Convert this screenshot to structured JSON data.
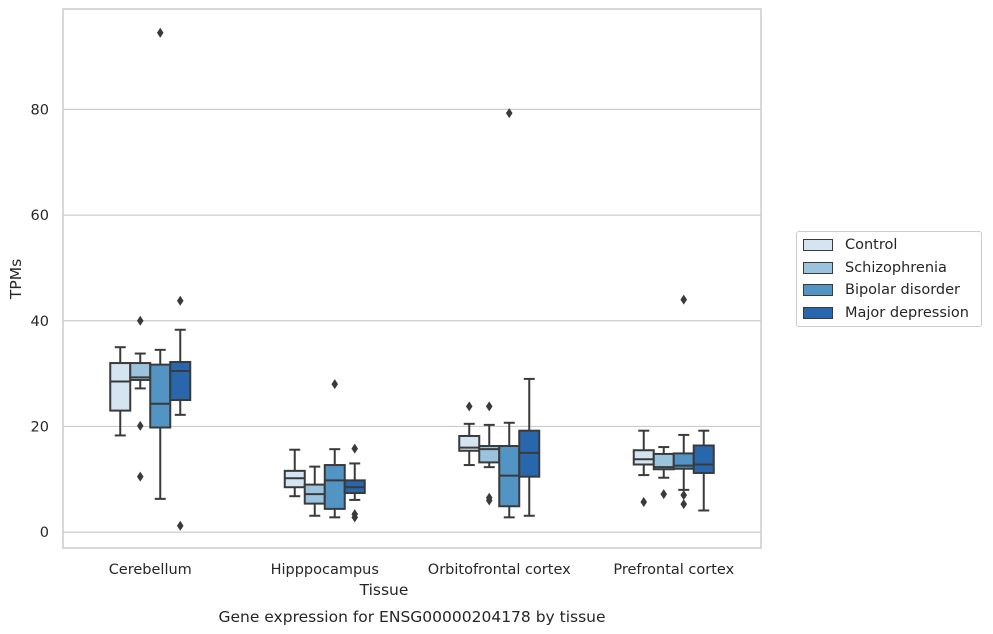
{
  "chart_data": {
    "type": "box",
    "title": "Gene expression for ENSG00000204178 by tissue",
    "xlabel": "Tissue",
    "ylabel": "TPMs",
    "ylim": [
      -3,
      99
    ],
    "yticks": [
      0,
      20,
      40,
      60,
      80
    ],
    "grid": "horizontal",
    "legend_position": "right",
    "categories": [
      "Cerebellum",
      "Hipppocampus",
      "Orbitofrontal cortex",
      "Prefrontal cortex"
    ],
    "series": [
      {
        "name": "Control",
        "color": "#d4e4f1",
        "boxes": [
          {
            "whislo": 18.3,
            "q1": 23,
            "med": 28.5,
            "q3": 32,
            "whishi": 35,
            "fliers": []
          },
          {
            "whislo": 6.8,
            "q1": 8.5,
            "med": 10.2,
            "q3": 11.6,
            "whishi": 15.6,
            "fliers": []
          },
          {
            "whislo": 12.7,
            "q1": 15.4,
            "med": 16,
            "q3": 18.2,
            "whishi": 20.5,
            "fliers": [
              23.8
            ]
          },
          {
            "whislo": 10.8,
            "q1": 12.8,
            "med": 13.8,
            "q3": 15.5,
            "whishi": 19.2,
            "fliers": [
              5.7
            ]
          }
        ]
      },
      {
        "name": "Schizophrenia",
        "color": "#9cc3dd",
        "boxes": [
          {
            "whislo": 27.2,
            "q1": 28.8,
            "med": 29.3,
            "q3": 32,
            "whishi": 33.8,
            "fliers": [
              40,
              20.1,
              10.5
            ]
          },
          {
            "whislo": 3.1,
            "q1": 5.4,
            "med": 7.2,
            "q3": 9,
            "whishi": 12.4,
            "fliers": []
          },
          {
            "whislo": 12.3,
            "q1": 13.2,
            "med": 15.7,
            "q3": 16.3,
            "whishi": 20.3,
            "fliers": [
              23.8,
              6.5,
              6
            ]
          },
          {
            "whislo": 10.3,
            "q1": 11.9,
            "med": 12.3,
            "q3": 14.8,
            "whishi": 16.1,
            "fliers": [
              7.2
            ]
          }
        ]
      },
      {
        "name": "Bipolar disorder",
        "color": "#5294c3",
        "boxes": [
          {
            "whislo": 6.3,
            "q1": 19.8,
            "med": 24.3,
            "q3": 31.7,
            "whishi": 34.5,
            "fliers": [
              94.5
            ]
          },
          {
            "whislo": 2.8,
            "q1": 4.4,
            "med": 9.8,
            "q3": 12.7,
            "whishi": 15.7,
            "fliers": [
              28
            ]
          },
          {
            "whislo": 2.8,
            "q1": 4.9,
            "med": 10.7,
            "q3": 16.3,
            "whishi": 20.7,
            "fliers": [
              79.3
            ]
          },
          {
            "whislo": 8,
            "q1": 12,
            "med": 12.6,
            "q3": 14.9,
            "whishi": 18.4,
            "fliers": [
              44,
              7,
              5.3
            ]
          }
        ]
      },
      {
        "name": "Major depression",
        "color": "#2967ac",
        "boxes": [
          {
            "whislo": 22.2,
            "q1": 25,
            "med": 30.5,
            "q3": 32.2,
            "whishi": 38.3,
            "fliers": [
              43.8,
              1.2
            ]
          },
          {
            "whislo": 6.1,
            "q1": 7.4,
            "med": 8.5,
            "q3": 9.8,
            "whishi": 13,
            "fliers": [
              15.8,
              3.4,
              2.8
            ]
          },
          {
            "whislo": 3.1,
            "q1": 10.5,
            "med": 15,
            "q3": 19.2,
            "whishi": 29,
            "fliers": []
          },
          {
            "whislo": 4.1,
            "q1": 11.2,
            "med": 12.8,
            "q3": 16.4,
            "whishi": 19.2,
            "fliers": []
          }
        ]
      }
    ]
  }
}
